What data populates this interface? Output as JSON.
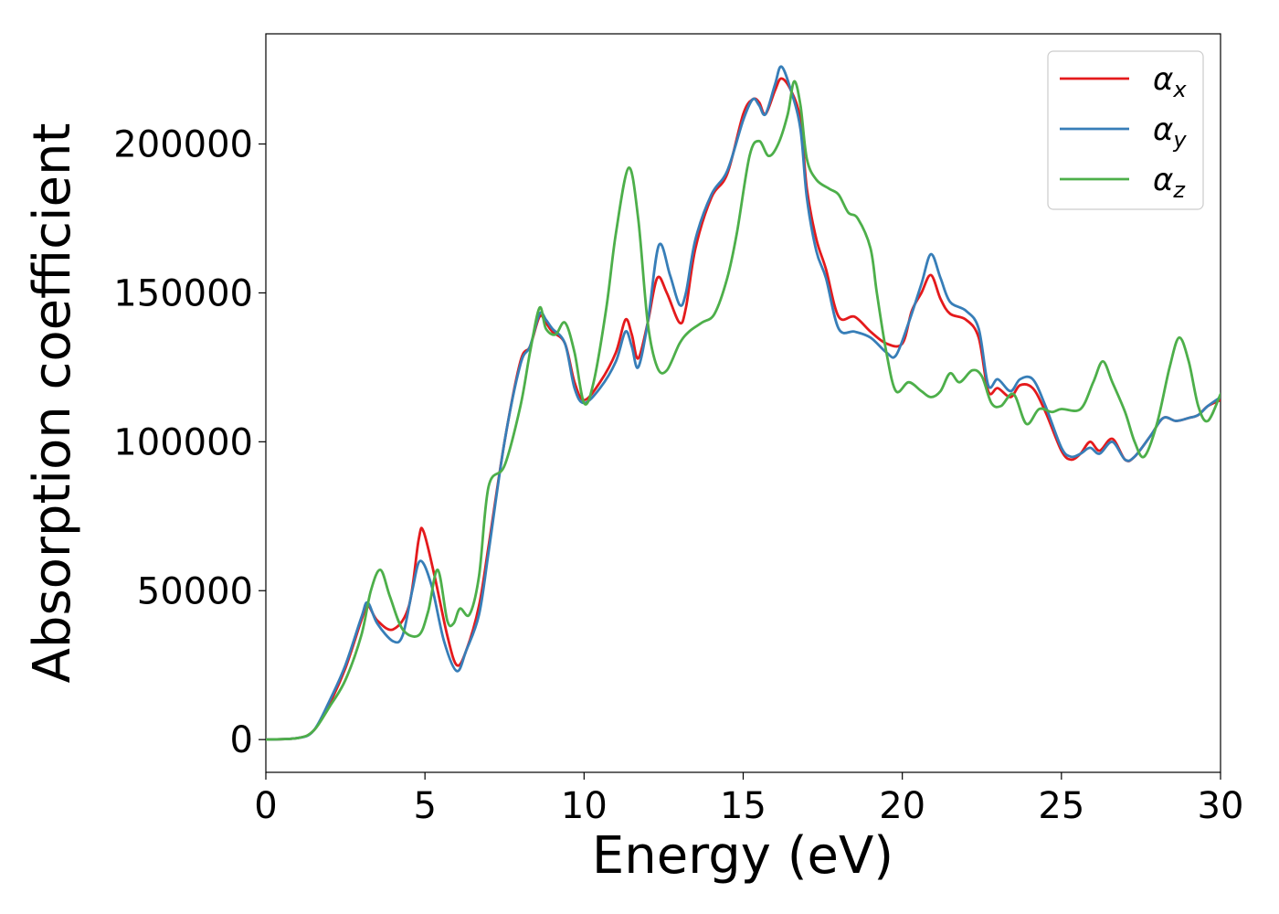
{
  "chart_data": {
    "type": "line",
    "xlabel": "Energy (eV)",
    "ylabel": "Absorption coefficient",
    "xlim": [
      0,
      30
    ],
    "ylim": [
      -11000,
      237000
    ],
    "xticks": [
      0,
      5,
      10,
      15,
      20,
      25,
      30
    ],
    "xtick_labels": [
      "0",
      "5",
      "10",
      "15",
      "20",
      "25",
      "30"
    ],
    "yticks": [
      0,
      50000,
      100000,
      150000,
      200000
    ],
    "ytick_labels": [
      "0",
      "50000",
      "100000",
      "150000",
      "200000"
    ],
    "grid": false,
    "legend_position": "top-right",
    "series": [
      {
        "name": "α",
        "subscript": "x",
        "color": "#e41a1c",
        "points": [
          [
            0,
            0
          ],
          [
            1,
            500
          ],
          [
            1.5,
            3000
          ],
          [
            2,
            12000
          ],
          [
            2.5,
            24000
          ],
          [
            3,
            40000
          ],
          [
            3.2,
            45000
          ],
          [
            3.5,
            40000
          ],
          [
            4,
            37000
          ],
          [
            4.5,
            45000
          ],
          [
            4.8,
            67000
          ],
          [
            4.95,
            70000
          ],
          [
            5.3,
            55000
          ],
          [
            5.7,
            35000
          ],
          [
            6,
            25000
          ],
          [
            6.3,
            30000
          ],
          [
            6.7,
            45000
          ],
          [
            7,
            65000
          ],
          [
            7.5,
            100000
          ],
          [
            8,
            127000
          ],
          [
            8.3,
            132000
          ],
          [
            8.6,
            142000
          ],
          [
            8.8,
            140000
          ],
          [
            9,
            137000
          ],
          [
            9.4,
            133000
          ],
          [
            9.7,
            120000
          ],
          [
            10,
            114000
          ],
          [
            10.5,
            120000
          ],
          [
            11,
            130000
          ],
          [
            11.3,
            141000
          ],
          [
            11.5,
            136000
          ],
          [
            11.7,
            128000
          ],
          [
            12,
            140000
          ],
          [
            12.3,
            155000
          ],
          [
            12.6,
            150000
          ],
          [
            13,
            140000
          ],
          [
            13.2,
            145000
          ],
          [
            13.5,
            165000
          ],
          [
            14,
            182000
          ],
          [
            14.5,
            190000
          ],
          [
            15,
            210000
          ],
          [
            15.3,
            215000
          ],
          [
            15.5,
            214000
          ],
          [
            15.7,
            210000
          ],
          [
            16,
            218000
          ],
          [
            16.2,
            222000
          ],
          [
            16.5,
            218000
          ],
          [
            16.8,
            208000
          ],
          [
            17,
            185000
          ],
          [
            17.3,
            168000
          ],
          [
            17.6,
            158000
          ],
          [
            18,
            142000
          ],
          [
            18.5,
            142000
          ],
          [
            19,
            137000
          ],
          [
            19.5,
            133000
          ],
          [
            20,
            133000
          ],
          [
            20.3,
            144000
          ],
          [
            20.6,
            150000
          ],
          [
            20.9,
            156000
          ],
          [
            21.2,
            148000
          ],
          [
            21.5,
            143000
          ],
          [
            22,
            141000
          ],
          [
            22.4,
            135000
          ],
          [
            22.7,
            117000
          ],
          [
            23,
            118000
          ],
          [
            23.4,
            115000
          ],
          [
            23.7,
            119000
          ],
          [
            24.1,
            118000
          ],
          [
            24.5,
            110000
          ],
          [
            25,
            97000
          ],
          [
            25.3,
            94000
          ],
          [
            25.6,
            96000
          ],
          [
            25.9,
            100000
          ],
          [
            26.2,
            97000
          ],
          [
            26.6,
            101000
          ],
          [
            27,
            94000
          ],
          [
            27.3,
            95000
          ],
          [
            27.8,
            102000
          ],
          [
            28.2,
            108000
          ],
          [
            28.6,
            107000
          ],
          [
            29,
            108000
          ],
          [
            29.3,
            109000
          ],
          [
            29.6,
            112000
          ],
          [
            30,
            114000
          ]
        ]
      },
      {
        "name": "α",
        "subscript": "y",
        "color": "#377eb8",
        "points": [
          [
            0,
            0
          ],
          [
            1,
            500
          ],
          [
            1.5,
            3000
          ],
          [
            2,
            13000
          ],
          [
            2.5,
            25000
          ],
          [
            3,
            41000
          ],
          [
            3.2,
            46000
          ],
          [
            3.5,
            39000
          ],
          [
            4,
            33000
          ],
          [
            4.3,
            35000
          ],
          [
            4.6,
            50000
          ],
          [
            4.85,
            60000
          ],
          [
            5.2,
            52000
          ],
          [
            5.6,
            33000
          ],
          [
            6,
            23000
          ],
          [
            6.3,
            30000
          ],
          [
            6.7,
            42000
          ],
          [
            7,
            63000
          ],
          [
            7.5,
            100000
          ],
          [
            8,
            126000
          ],
          [
            8.3,
            132000
          ],
          [
            8.6,
            143000
          ],
          [
            8.8,
            141000
          ],
          [
            9,
            138000
          ],
          [
            9.4,
            133000
          ],
          [
            9.7,
            118000
          ],
          [
            10,
            113000
          ],
          [
            10.5,
            118000
          ],
          [
            11,
            127000
          ],
          [
            11.3,
            137000
          ],
          [
            11.5,
            132000
          ],
          [
            11.7,
            125000
          ],
          [
            12,
            140000
          ],
          [
            12.35,
            166000
          ],
          [
            12.7,
            156000
          ],
          [
            13,
            146000
          ],
          [
            13.2,
            150000
          ],
          [
            13.5,
            168000
          ],
          [
            14,
            183000
          ],
          [
            14.5,
            191000
          ],
          [
            15,
            208000
          ],
          [
            15.3,
            215000
          ],
          [
            15.5,
            213000
          ],
          [
            15.7,
            210000
          ],
          [
            16,
            220000
          ],
          [
            16.2,
            226000
          ],
          [
            16.5,
            218000
          ],
          [
            16.8,
            205000
          ],
          [
            17,
            182000
          ],
          [
            17.3,
            164000
          ],
          [
            17.6,
            155000
          ],
          [
            18,
            138000
          ],
          [
            18.5,
            137000
          ],
          [
            19,
            135000
          ],
          [
            19.5,
            130000
          ],
          [
            19.8,
            129000
          ],
          [
            20.2,
            140000
          ],
          [
            20.6,
            153000
          ],
          [
            20.9,
            163000
          ],
          [
            21.2,
            155000
          ],
          [
            21.5,
            147000
          ],
          [
            22,
            144000
          ],
          [
            22.4,
            138000
          ],
          [
            22.7,
            119000
          ],
          [
            23,
            121000
          ],
          [
            23.4,
            117000
          ],
          [
            23.7,
            121000
          ],
          [
            24.1,
            121000
          ],
          [
            24.5,
            112000
          ],
          [
            25,
            98000
          ],
          [
            25.3,
            95000
          ],
          [
            25.6,
            96000
          ],
          [
            25.9,
            98000
          ],
          [
            26.2,
            96000
          ],
          [
            26.6,
            100000
          ],
          [
            27,
            94000
          ],
          [
            27.3,
            95000
          ],
          [
            27.8,
            102000
          ],
          [
            28.2,
            108000
          ],
          [
            28.6,
            107000
          ],
          [
            29,
            108000
          ],
          [
            29.3,
            109000
          ],
          [
            29.6,
            112000
          ],
          [
            30,
            115000
          ]
        ]
      },
      {
        "name": "α",
        "subscript": "z",
        "color": "#4daf4a",
        "points": [
          [
            0,
            0
          ],
          [
            1,
            500
          ],
          [
            1.5,
            3000
          ],
          [
            2,
            11000
          ],
          [
            2.5,
            20000
          ],
          [
            3,
            35000
          ],
          [
            3.3,
            50000
          ],
          [
            3.6,
            57000
          ],
          [
            3.9,
            48000
          ],
          [
            4.3,
            37000
          ],
          [
            4.8,
            35000
          ],
          [
            5.1,
            43000
          ],
          [
            5.4,
            57000
          ],
          [
            5.7,
            40000
          ],
          [
            5.9,
            39000
          ],
          [
            6.1,
            44000
          ],
          [
            6.4,
            42000
          ],
          [
            6.7,
            55000
          ],
          [
            7,
            85000
          ],
          [
            7.5,
            92000
          ],
          [
            8,
            112000
          ],
          [
            8.3,
            130000
          ],
          [
            8.6,
            145000
          ],
          [
            8.8,
            138000
          ],
          [
            9.1,
            136000
          ],
          [
            9.4,
            140000
          ],
          [
            9.7,
            130000
          ],
          [
            10,
            113000
          ],
          [
            10.3,
            120000
          ],
          [
            10.7,
            145000
          ],
          [
            11,
            170000
          ],
          [
            11.4,
            192000
          ],
          [
            11.7,
            175000
          ],
          [
            12,
            140000
          ],
          [
            12.3,
            125000
          ],
          [
            12.6,
            124000
          ],
          [
            13,
            133000
          ],
          [
            13.3,
            137000
          ],
          [
            13.7,
            140000
          ],
          [
            14.1,
            143000
          ],
          [
            14.5,
            155000
          ],
          [
            14.8,
            170000
          ],
          [
            15.2,
            196000
          ],
          [
            15.5,
            201000
          ],
          [
            15.8,
            196000
          ],
          [
            16.1,
            200000
          ],
          [
            16.4,
            210000
          ],
          [
            16.6,
            221000
          ],
          [
            16.8,
            213000
          ],
          [
            17,
            195000
          ],
          [
            17.3,
            188000
          ],
          [
            17.7,
            185000
          ],
          [
            18,
            183000
          ],
          [
            18.3,
            177000
          ],
          [
            18.6,
            175000
          ],
          [
            19,
            165000
          ],
          [
            19.2,
            150000
          ],
          [
            19.5,
            130000
          ],
          [
            19.8,
            117000
          ],
          [
            20.2,
            120000
          ],
          [
            20.6,
            117000
          ],
          [
            20.9,
            115000
          ],
          [
            21.2,
            117000
          ],
          [
            21.5,
            123000
          ],
          [
            21.8,
            120000
          ],
          [
            22.2,
            124000
          ],
          [
            22.5,
            122000
          ],
          [
            22.8,
            113000
          ],
          [
            23.1,
            112000
          ],
          [
            23.5,
            116000
          ],
          [
            23.9,
            106000
          ],
          [
            24.3,
            111000
          ],
          [
            24.7,
            110000
          ],
          [
            25,
            111000
          ],
          [
            25.6,
            111000
          ],
          [
            26,
            120000
          ],
          [
            26.3,
            127000
          ],
          [
            26.6,
            120000
          ],
          [
            27,
            110000
          ],
          [
            27.3,
            100000
          ],
          [
            27.6,
            95000
          ],
          [
            28,
            106000
          ],
          [
            28.4,
            125000
          ],
          [
            28.7,
            135000
          ],
          [
            29,
            127000
          ],
          [
            29.3,
            112000
          ],
          [
            29.6,
            107000
          ],
          [
            30,
            116000
          ]
        ]
      }
    ]
  }
}
